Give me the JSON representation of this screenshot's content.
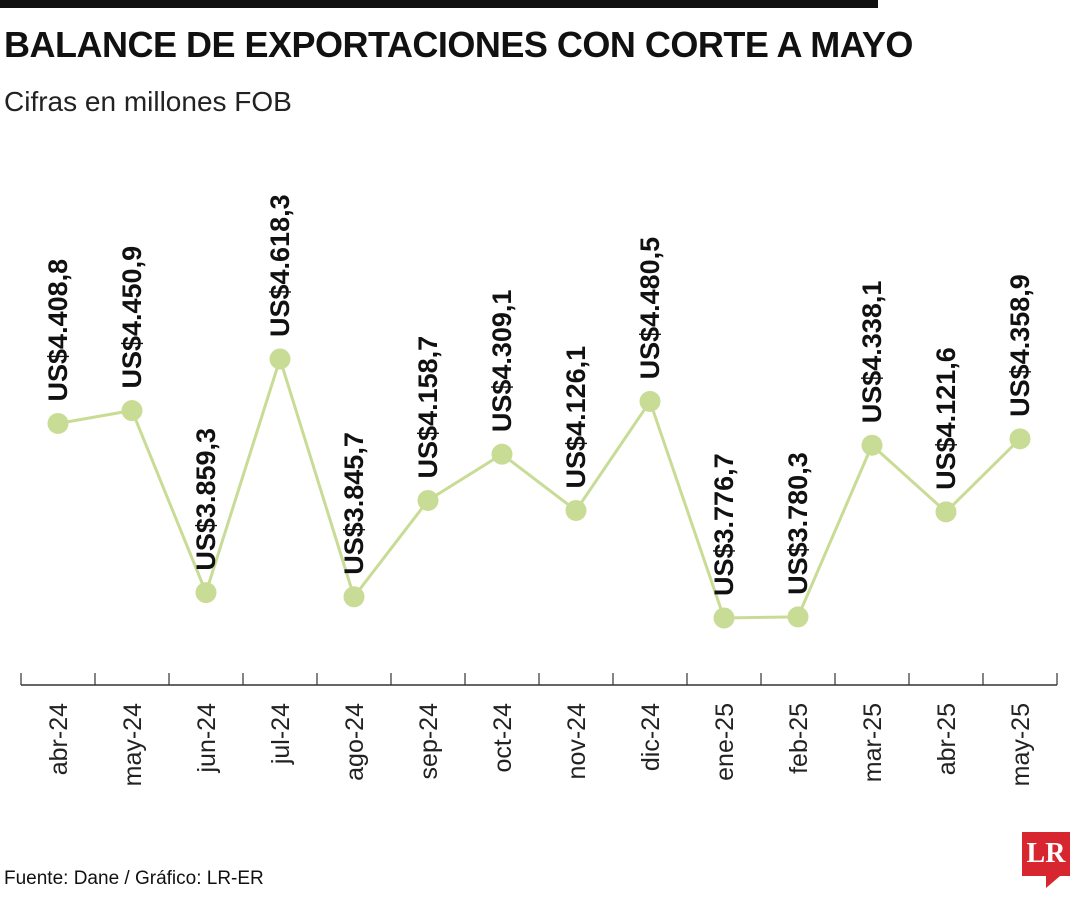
{
  "header": {
    "title": "BALANCE DE EXPORTACIONES CON CORTE A MAYO",
    "subtitle": "Cifras en millones FOB"
  },
  "footer": {
    "source": "Fuente: Dane / Gráfico: LR-ER",
    "logo_text": "LR"
  },
  "colors": {
    "line": "#c8dc96",
    "marker": "#c8dc96",
    "axis": "#333333",
    "text": "#111111",
    "logo": "#d7262f"
  },
  "chart_data": {
    "type": "line",
    "title": "BALANCE DE EXPORTACIONES CON CORTE A MAYO",
    "subtitle": "Cifras en millones FOB",
    "xlabel": "",
    "ylabel": "",
    "categories": [
      "abr-24",
      "may-24",
      "jun-24",
      "jul-24",
      "ago-24",
      "sep-24",
      "oct-24",
      "nov-24",
      "dic-24",
      "ene-25",
      "feb-25",
      "mar-25",
      "abr-25",
      "may-25"
    ],
    "values": [
      4408.8,
      4450.9,
      3859.3,
      4618.3,
      3845.7,
      4158.7,
      4309.1,
      4126.1,
      4480.5,
      3776.7,
      3780.3,
      4338.1,
      4121.6,
      4358.9
    ],
    "labels": [
      "US$4.408,8",
      "US$4.450,9",
      "US$3.859,3",
      "US$4.618,3",
      "US$3.845,7",
      "US$4.158,7",
      "US$4.309,1",
      "US$4.126,1",
      "US$4.480,5",
      "US$3.776,7",
      "US$3.780,3",
      "US$4.338,1",
      "US$4.121,6",
      "US$4.358,9"
    ],
    "grid": false,
    "legend": "none"
  }
}
